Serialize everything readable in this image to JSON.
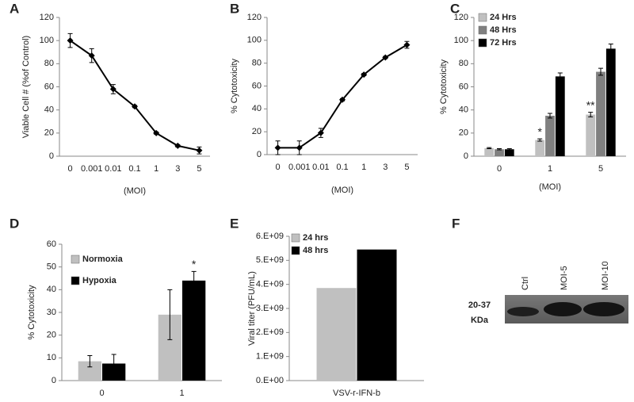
{
  "chart_data": [
    {
      "type": "line",
      "panel": "A",
      "ylabel": "Viable Cell # (%of Control)",
      "xlabel": "(MOI)",
      "categories": [
        "0",
        "0.001",
        "0.01",
        "0.1",
        "1",
        "3",
        "5"
      ],
      "series": [
        {
          "color": "#000000",
          "values": [
            100,
            87,
            58,
            43,
            20,
            9,
            5
          ],
          "errors": [
            6,
            6,
            4,
            1,
            1,
            1,
            3
          ]
        }
      ],
      "ylim": [
        0,
        120
      ],
      "yticks": [
        0,
        20,
        40,
        60,
        80,
        100,
        120
      ]
    },
    {
      "type": "line",
      "panel": "B",
      "ylabel": "% Cytotoxicity",
      "xlabel": "(MOI)",
      "categories": [
        "0",
        "0.001",
        "0.01",
        "0.1",
        "1",
        "3",
        "5"
      ],
      "series": [
        {
          "color": "#000000",
          "values": [
            6,
            6,
            19,
            48,
            70,
            85,
            96
          ],
          "errors": [
            6,
            6,
            4,
            1,
            1,
            1,
            3
          ]
        }
      ],
      "ylim": [
        0,
        120
      ],
      "yticks": [
        0,
        20,
        40,
        60,
        80,
        100,
        120
      ]
    },
    {
      "type": "bar",
      "panel": "C",
      "ylabel": "% Cytotoxicity",
      "xlabel": "(MOI)",
      "categories": [
        "0",
        "1",
        "5"
      ],
      "series": [
        {
          "name": "24 Hrs",
          "color": "#c0c0c0",
          "values": [
            7,
            14,
            36
          ],
          "errors": [
            0.5,
            1,
            2
          ]
        },
        {
          "name": "48 Hrs",
          "color": "#808080",
          "values": [
            6,
            35,
            73
          ],
          "errors": [
            0.5,
            2,
            3
          ]
        },
        {
          "name": "72 Hrs",
          "color": "#000000",
          "values": [
            6,
            69,
            93
          ],
          "errors": [
            0.5,
            3,
            4
          ]
        }
      ],
      "annotations": [
        {
          "text": "*",
          "series": 0,
          "category": 1
        },
        {
          "text": "**",
          "series": 0,
          "category": 2
        }
      ],
      "legend": "upper left",
      "ylim": [
        0,
        120
      ],
      "yticks": [
        0,
        20,
        40,
        60,
        80,
        100,
        120
      ]
    },
    {
      "type": "bar",
      "panel": "D",
      "ylabel": "% Cytotoxicity",
      "categories": [
        "0",
        "1"
      ],
      "series": [
        {
          "name": "Normoxia",
          "color": "#c0c0c0",
          "values": [
            8.5,
            29
          ],
          "errors": [
            2.5,
            11
          ]
        },
        {
          "name": "Hypoxia",
          "color": "#000000",
          "values": [
            7.5,
            44
          ],
          "errors": [
            4,
            4
          ]
        }
      ],
      "annotations": [
        {
          "text": "*",
          "series": 1,
          "category": 1
        }
      ],
      "legend": "upper left",
      "ylim": [
        0,
        60
      ],
      "yticks": [
        0,
        10,
        20,
        30,
        40,
        50,
        60
      ]
    },
    {
      "type": "bar",
      "panel": "E",
      "ylabel": "Viral titer (PFU/mL)",
      "categories": [
        "VSV-r-IFN-b"
      ],
      "series": [
        {
          "name": "24 hrs",
          "color": "#c0c0c0",
          "values": [
            3850000000
          ]
        },
        {
          "name": "48 hrs",
          "color": "#000000",
          "values": [
            5450000000
          ]
        }
      ],
      "legend": "upper left",
      "ylim": [
        0,
        6000000000
      ],
      "yticks": [
        {
          "value": 0,
          "label": "0.E+00"
        },
        {
          "value": 1000000000,
          "label": "1.E+09"
        },
        {
          "value": 2000000000,
          "label": "2.E+09"
        },
        {
          "value": 3000000000,
          "label": "3.E+09"
        },
        {
          "value": 4000000000,
          "label": "4.E+09"
        },
        {
          "value": 5000000000,
          "label": "5.E+09"
        },
        {
          "value": 6000000000,
          "label": "6.E+09"
        }
      ]
    }
  ],
  "blot": {
    "panel": "F",
    "lanes": [
      "Ctrl",
      "MOI-5",
      "MOI-10"
    ],
    "marker": "20-37",
    "unit": "KDa"
  }
}
